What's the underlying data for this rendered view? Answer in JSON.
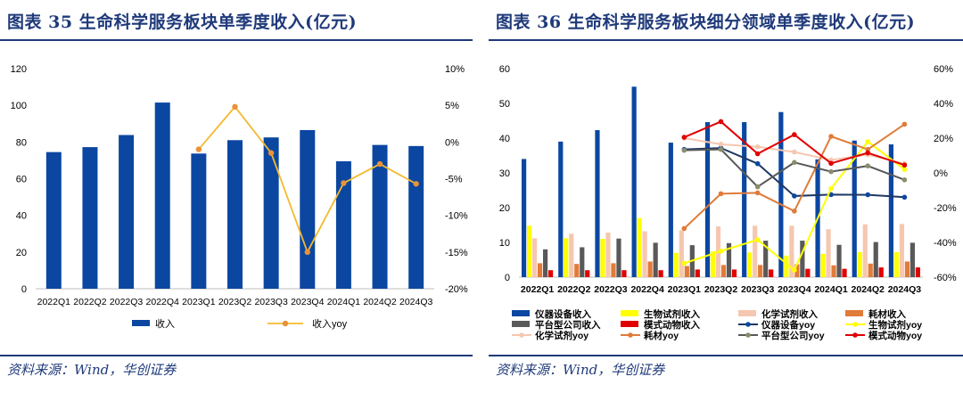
{
  "left_panel": {
    "title": "图表 35 生命科学服务板块单季度收入(亿元)",
    "source": "资料来源：Wind，华创证券"
  },
  "right_panel": {
    "title": "图表 36 生命科学服务板块细分领域单季度收入(亿元)",
    "source": "资料来源：Wind，华创证券"
  },
  "colors": {
    "title_blue": "#1F3A7A",
    "bar_blue": "#0B47A1",
    "yoy_orange": "#F5B92E",
    "instrument": "#0B47A1",
    "bio_reagent": "#FFFF00",
    "chem_reagent": "#F6C7B0",
    "consumables": "#E07B39",
    "platform_company": "#595959",
    "model_animal": "#E00000"
  },
  "chart_data": [
    {
      "type": "bar",
      "categories": [
        "2022Q1",
        "2022Q2",
        "2022Q3",
        "2022Q4",
        "2023Q1",
        "2023Q2",
        "2023Q3",
        "2023Q4",
        "2024Q1",
        "2024Q2",
        "2024Q3"
      ],
      "ylim": [
        0,
        120
      ],
      "yticks": [
        "0",
        "20",
        "40",
        "60",
        "80",
        "100",
        "120"
      ],
      "y2lim": [
        -20,
        10
      ],
      "y2ticks": [
        "-20%",
        "-15%",
        "-10%",
        "-5%",
        "0%",
        "5%",
        "10%"
      ],
      "series": [
        {
          "name": "收入",
          "type": "bar",
          "axis": "left",
          "values": [
            74.5,
            77.2,
            83.8,
            101.5,
            73.7,
            81.0,
            82.5,
            86.5,
            69.5,
            78.4,
            77.8
          ]
        },
        {
          "name": "收入yoy",
          "type": "line",
          "axis": "right",
          "values": [
            null,
            null,
            null,
            null,
            -1.0,
            4.8,
            -1.5,
            -15.0,
            -5.6,
            -3.0,
            -5.7
          ]
        }
      ],
      "legend": [
        "收入",
        "收入yoy"
      ],
      "legend_position": "bottom",
      "grid": false
    },
    {
      "type": "bar",
      "categories": [
        "2022Q1",
        "2022Q2",
        "2022Q3",
        "2022Q4",
        "2023Q1",
        "2023Q2",
        "2023Q3",
        "2023Q4",
        "2024Q1",
        "2024Q2",
        "2024Q3"
      ],
      "ylim": [
        0,
        60
      ],
      "yticks": [
        "0",
        "10",
        "20",
        "30",
        "40",
        "50",
        "60"
      ],
      "y2lim": [
        -60,
        60
      ],
      "y2ticks": [
        "-60%",
        "-40%",
        "-20%",
        "0%",
        "20%",
        "40%",
        "60%"
      ],
      "series": [
        {
          "name": "仪器设备收入",
          "type": "bar",
          "axis": "left",
          "color_key": "instrument",
          "values": [
            34.0,
            39.0,
            42.3,
            54.8,
            38.7,
            44.6,
            44.6,
            47.5,
            33.9,
            39.3,
            38.2
          ]
        },
        {
          "name": "生物试剂收入",
          "type": "bar",
          "axis": "left",
          "color_key": "bio_reagent",
          "values": [
            14.8,
            11.2,
            11.0,
            17.0,
            7.0,
            7.4,
            7.1,
            6.2,
            6.7,
            7.2,
            7.2
          ]
        },
        {
          "name": "化学试剂收入",
          "type": "bar",
          "axis": "left",
          "color_key": "chem_reagent",
          "values": [
            11.2,
            12.5,
            12.8,
            13.2,
            13.5,
            14.6,
            14.8,
            14.8,
            13.8,
            15.2,
            15.3
          ]
        },
        {
          "name": "耗材收入",
          "type": "bar",
          "axis": "left",
          "color_key": "consumables",
          "values": [
            4.0,
            3.8,
            4.0,
            4.5,
            3.2,
            3.5,
            3.5,
            3.7,
            3.4,
            3.9,
            4.5
          ]
        },
        {
          "name": "平台型公司收入",
          "type": "bar",
          "axis": "left",
          "color_key": "platform_company",
          "values": [
            8.0,
            8.6,
            11.1,
            9.9,
            9.2,
            9.8,
            10.5,
            10.5,
            9.3,
            10.1,
            9.9
          ]
        },
        {
          "name": "模式动物收入",
          "type": "bar",
          "axis": "left",
          "color_key": "model_animal",
          "values": [
            2.0,
            2.0,
            2.0,
            2.0,
            2.2,
            2.2,
            2.2,
            2.4,
            2.4,
            2.8,
            2.8
          ]
        },
        {
          "name": "仪器设备yoy",
          "type": "line",
          "axis": "right",
          "color_key": "instrument",
          "values": [
            null,
            null,
            null,
            null,
            13.5,
            14.3,
            5.3,
            -13.3,
            -12.5,
            -12.6,
            -14.0
          ]
        },
        {
          "name": "生物试剂yoy",
          "type": "line",
          "axis": "right",
          "color_key": "bio_reagent",
          "values": [
            null,
            null,
            null,
            null,
            -52.0,
            -45.0,
            -38.5,
            -56.0,
            -9.0,
            18.0,
            2.0
          ]
        },
        {
          "name": "化学试剂yoy",
          "type": "line",
          "axis": "right",
          "color_key": "chem_reagent",
          "values": [
            null,
            null,
            null,
            null,
            20.0,
            16.5,
            15.0,
            12.0,
            7.4,
            10.5,
            5.3
          ]
        },
        {
          "name": "耗材yoy",
          "type": "line",
          "axis": "right",
          "color_key": "consumables",
          "values": [
            null,
            null,
            null,
            null,
            -32.0,
            -12.0,
            -11.5,
            -22.0,
            21.0,
            13.5,
            28.0
          ]
        },
        {
          "name": "平台型公司yoy",
          "type": "line",
          "axis": "right",
          "color_key": "platform_company",
          "values": [
            null,
            null,
            null,
            null,
            13.0,
            13.5,
            -8.0,
            6.0,
            0.7,
            4.0,
            -4.0
          ]
        },
        {
          "name": "模式动物yoy",
          "type": "line",
          "axis": "right",
          "color_key": "model_animal",
          "values": [
            null,
            null,
            null,
            null,
            20.5,
            29.5,
            11.0,
            22.0,
            5.5,
            11.5,
            4.5
          ]
        }
      ],
      "legend": [
        "仪器设备收入",
        "生物试剂收入",
        "化学试剂收入",
        "耗材收入",
        "平台型公司收入",
        "模式动物收入",
        "仪器设备yoy",
        "生物试剂yoy",
        "化学试剂yoy",
        "耗材yoy",
        "平台型公司yoy",
        "模式动物yoy"
      ],
      "legend_position": "bottom",
      "grid": false
    }
  ]
}
